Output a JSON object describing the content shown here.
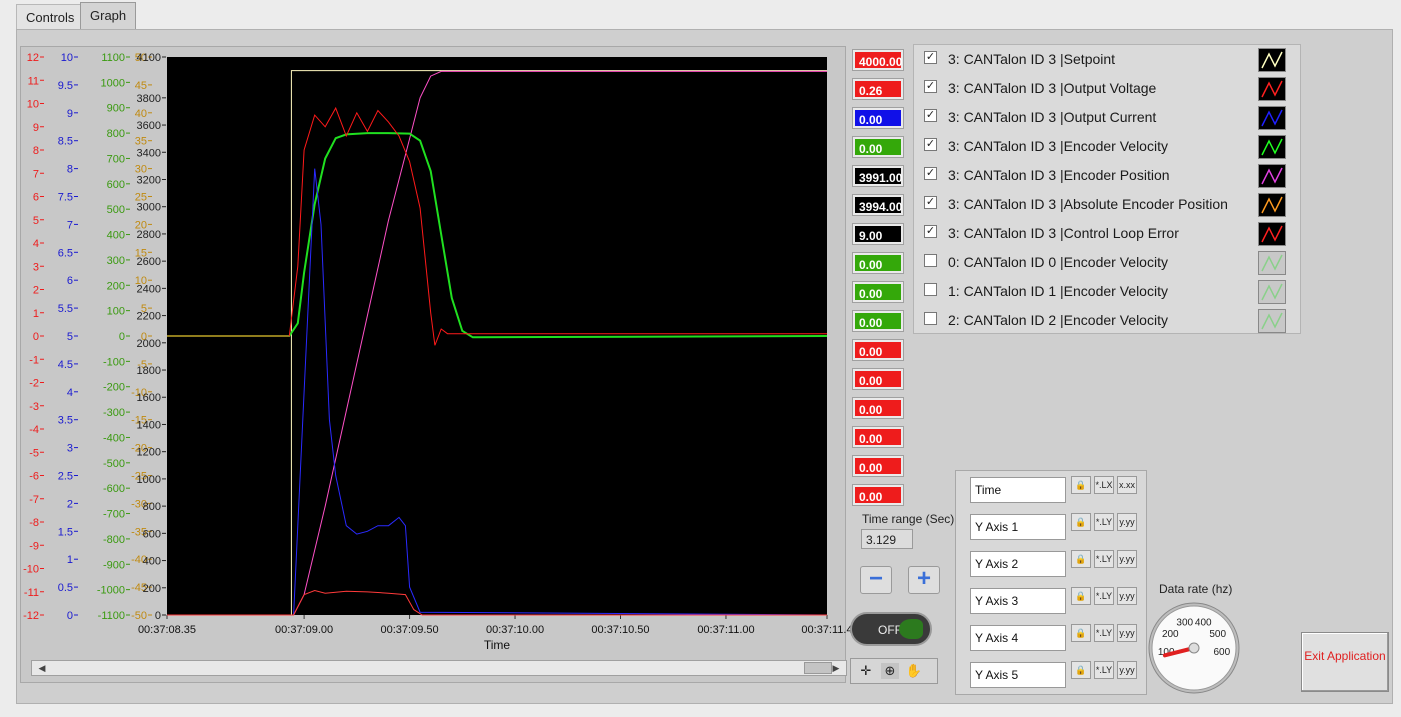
{
  "tabs": [
    {
      "label": "Controls"
    },
    {
      "label": "Graph"
    }
  ],
  "values": [
    "4000.00",
    "0.26",
    "0.00",
    "0.00",
    "3991.00",
    "3994.00",
    "9.00",
    "0.00",
    "0.00",
    "0.00",
    "0.00",
    "0.00",
    "0.00",
    "0.00",
    "0.00",
    "0.00"
  ],
  "value_colors": [
    "#ee1c1c",
    "#ee1c1c",
    "#1010e8",
    "#34a80a",
    "#000000",
    "#000000",
    "#000000",
    "#34a80a",
    "#34a80a",
    "#34a80a",
    "#ee1c1c",
    "#ee1c1c",
    "#ee1c1c",
    "#ee1c1c",
    "#ee1c1c",
    "#ee1c1c"
  ],
  "legend": [
    {
      "label": "3: CANTalon ID 3  |Setpoint",
      "checked": true,
      "color": "#ffffc0"
    },
    {
      "label": "3: CANTalon ID 3  |Output Voltage",
      "checked": true,
      "color": "#ff2020"
    },
    {
      "label": "3: CANTalon ID 3  |Output Current",
      "checked": true,
      "color": "#2020ff"
    },
    {
      "label": "3: CANTalon ID 3  |Encoder Velocity",
      "checked": true,
      "color": "#20ff20"
    },
    {
      "label": "3: CANTalon ID 3  |Encoder Position",
      "checked": true,
      "color": "#e040e0"
    },
    {
      "label": "3: CANTalon ID 3  |Absolute Encoder Position",
      "checked": true,
      "color": "#ff9a20"
    },
    {
      "label": "3: CANTalon ID 3  |Control Loop Error",
      "checked": true,
      "color": "#ff2020"
    },
    {
      "label": "0: CANTalon ID 0  |Encoder Velocity",
      "checked": false,
      "color": "#8ad08a"
    },
    {
      "label": "1: CANTalon ID 1  |Encoder Velocity",
      "checked": false,
      "color": "#8ad08a"
    },
    {
      "label": "2: CANTalon ID 2  |Encoder Velocity",
      "checked": false,
      "color": "#8ad08a"
    }
  ],
  "time_range": {
    "label": "Time range (Sec)",
    "value": "3.129"
  },
  "buttons": {
    "minus": "−",
    "plus": "+",
    "toggle": "OFF",
    "exit": "Exit Application"
  },
  "axis_names": [
    "Time",
    "Y Axis 1",
    "Y Axis 2",
    "Y Axis 3",
    "Y Axis 4",
    "Y Axis 5"
  ],
  "axis_btn_labels": {
    "lock": "🔒",
    "fmt1": "*.LX",
    "fmt1y": "*.LY",
    "fmt2": "x.xx",
    "fmt2y": "y.yy"
  },
  "data_rate": {
    "label": "Data rate (hz)",
    "ticks": [
      "100",
      "200",
      "300",
      "400",
      "500",
      "600"
    ],
    "value": 80
  },
  "chart_data": {
    "type": "line",
    "xlabel": "Time",
    "x_ticks": [
      "00:37:08.35",
      "00:37:09.00",
      "00:37:09.50",
      "00:37:10.00",
      "00:37:10.50",
      "00:37:11.00",
      "00:37:11.4"
    ],
    "x_range_sec": [
      8.35,
      11.479
    ],
    "axes": [
      {
        "color": "#ee1c1c",
        "ticks": [
          "12",
          "11",
          "10",
          "9",
          "8",
          "7",
          "6",
          "5",
          "4",
          "3",
          "2",
          "1",
          "0",
          "-1",
          "-2",
          "-3",
          "-4",
          "-5",
          "-6",
          "-7",
          "-8",
          "-9",
          "-10",
          "-11",
          "-12"
        ],
        "range": [
          -12,
          12
        ]
      },
      {
        "color": "#1a1ad0",
        "ticks": [
          "10",
          "9.5",
          "9",
          "8.5",
          "8",
          "7.5",
          "7",
          "6.5",
          "6",
          "5.5",
          "5",
          "4.5",
          "4",
          "3.5",
          "3",
          "2.5",
          "2",
          "1.5",
          "1",
          "0.5",
          "0"
        ],
        "range": [
          0,
          10
        ]
      },
      {
        "color": "#3a9a10",
        "ticks": [
          "1100",
          "1000",
          "900",
          "800",
          "700",
          "600",
          "500",
          "400",
          "300",
          "200",
          "100",
          "0",
          "-100",
          "-200",
          "-300",
          "-400",
          "-500",
          "-600",
          "-700",
          "-800",
          "-900",
          "-1000",
          "-1100"
        ],
        "range": [
          -1100,
          1100
        ]
      },
      {
        "color": "#c08a10",
        "ticks": [
          "50",
          "45",
          "40",
          "35",
          "30",
          "25",
          "20",
          "15",
          "10",
          "5",
          "0",
          "-5",
          "-10",
          "-15",
          "-20",
          "-25",
          "-30",
          "-35",
          "-40",
          "-45",
          "-50"
        ],
        "range": [
          -50,
          50
        ]
      },
      {
        "color": "#222222",
        "ticks": [
          "4100",
          "3800",
          "3600",
          "3400",
          "3200",
          "3000",
          "2800",
          "2600",
          "2400",
          "2200",
          "2000",
          "1800",
          "1600",
          "1400",
          "1200",
          "1000",
          "800",
          "600",
          "400",
          "200",
          "0"
        ],
        "range": [
          0,
          4100
        ]
      }
    ],
    "series": [
      {
        "name": "Setpoint",
        "color": "#fff8c0",
        "axis": 4,
        "points": [
          [
            8.35,
            0
          ],
          [
            8.94,
            0
          ],
          [
            8.94,
            4000
          ],
          [
            11.479,
            4000
          ]
        ]
      },
      {
        "name": "Encoder Position",
        "color": "#ff50c8",
        "axis": 4,
        "points": [
          [
            8.35,
            0
          ],
          [
            8.95,
            0
          ],
          [
            9.0,
            150
          ],
          [
            9.1,
            800
          ],
          [
            9.2,
            1500
          ],
          [
            9.3,
            2200
          ],
          [
            9.4,
            2900
          ],
          [
            9.5,
            3500
          ],
          [
            9.55,
            3800
          ],
          [
            9.6,
            3960
          ],
          [
            9.65,
            3994
          ],
          [
            11.479,
            3994
          ]
        ]
      },
      {
        "name": "Encoder Velocity",
        "color": "#20e020",
        "axis": 2,
        "points": [
          [
            8.35,
            0
          ],
          [
            8.93,
            0
          ],
          [
            8.97,
            50
          ],
          [
            9.0,
            250
          ],
          [
            9.05,
            520
          ],
          [
            9.1,
            700
          ],
          [
            9.15,
            780
          ],
          [
            9.2,
            795
          ],
          [
            9.3,
            800
          ],
          [
            9.4,
            800
          ],
          [
            9.5,
            798
          ],
          [
            9.55,
            770
          ],
          [
            9.6,
            650
          ],
          [
            9.65,
            400
          ],
          [
            9.7,
            150
          ],
          [
            9.75,
            20
          ],
          [
            9.8,
            -5
          ],
          [
            11.479,
            0
          ]
        ]
      },
      {
        "name": "Output Voltage",
        "color": "#ff1a1a",
        "axis": 0,
        "points": [
          [
            8.35,
            0
          ],
          [
            8.93,
            0
          ],
          [
            8.97,
            3
          ],
          [
            9.0,
            8
          ],
          [
            9.05,
            9.5
          ],
          [
            9.1,
            9.0
          ],
          [
            9.15,
            9.8
          ],
          [
            9.2,
            8.6
          ],
          [
            9.25,
            9.6
          ],
          [
            9.3,
            8.8
          ],
          [
            9.35,
            9.7
          ],
          [
            9.4,
            9.2
          ],
          [
            9.45,
            8.6
          ],
          [
            9.5,
            7.5
          ],
          [
            9.55,
            5.5
          ],
          [
            9.6,
            1.0
          ],
          [
            9.62,
            -0.4
          ],
          [
            9.65,
            0.3
          ],
          [
            9.68,
            0.1
          ],
          [
            11.479,
            0.1
          ]
        ]
      },
      {
        "name": "Output Current",
        "color": "#2a2aff",
        "axis": 1,
        "points": [
          [
            8.35,
            0
          ],
          [
            8.95,
            0
          ],
          [
            9.0,
            4
          ],
          [
            9.05,
            8.0
          ],
          [
            9.08,
            7.0
          ],
          [
            9.12,
            3.5
          ],
          [
            9.15,
            2.5
          ],
          [
            9.2,
            1.6
          ],
          [
            9.25,
            1.45
          ],
          [
            9.3,
            1.5
          ],
          [
            9.35,
            1.6
          ],
          [
            9.4,
            1.6
          ],
          [
            9.45,
            1.75
          ],
          [
            9.48,
            1.6
          ],
          [
            9.5,
            0.5
          ],
          [
            9.55,
            0.05
          ],
          [
            11.479,
            0
          ]
        ]
      },
      {
        "name": "Control Loop Error",
        "color": "#ff3a3a",
        "axis": 4,
        "points": [
          [
            8.35,
            0
          ],
          [
            8.95,
            0
          ],
          [
            9.0,
            150
          ],
          [
            9.05,
            180
          ],
          [
            9.1,
            160
          ],
          [
            9.2,
            175
          ],
          [
            9.3,
            170
          ],
          [
            9.4,
            160
          ],
          [
            9.48,
            150
          ],
          [
            9.52,
            40
          ],
          [
            9.56,
            0
          ],
          [
            11.479,
            0
          ]
        ]
      }
    ]
  }
}
